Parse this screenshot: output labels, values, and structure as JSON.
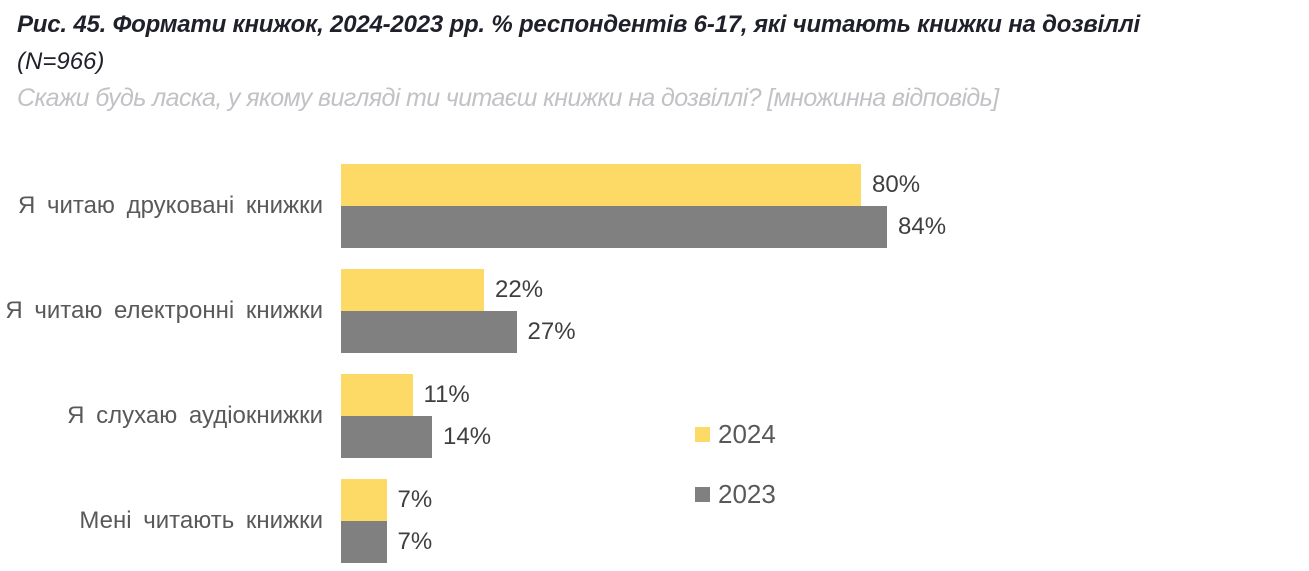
{
  "header": {
    "title": "Рис. 45. Формати книжок, 2024-2023 рр. % респондентів 6-17, які читають книжки на дозвіллі",
    "sample": "(N=966)",
    "subtitle": "Скажи будь ласка, у якому вигляді ти читаєш книжки на дозвіллі? [множинна відповідь]"
  },
  "chart_data": {
    "type": "bar",
    "orientation": "horizontal",
    "title": "Формати книжок, 2024-2023 рр.",
    "categories": [
      "Я читаю друковані книжки",
      "Я читаю електронні книжки",
      "Я слухаю аудіокнижки",
      "Мені читають книжки"
    ],
    "series": [
      {
        "name": "2024",
        "color": "#FDD965",
        "values": [
          80,
          22,
          11,
          7
        ]
      },
      {
        "name": "2023",
        "color": "#808080",
        "values": [
          84,
          27,
          14,
          7
        ]
      }
    ],
    "value_suffix": "%",
    "xlim": [
      0,
      100
    ],
    "grid": false,
    "legend_position": "right-middle",
    "colors": {
      "category_label": "#595959",
      "value_label": "#3f3f3f",
      "title_text": "#20202a",
      "subtitle_text": "#c2c2c6",
      "background": "#ffffff"
    }
  }
}
